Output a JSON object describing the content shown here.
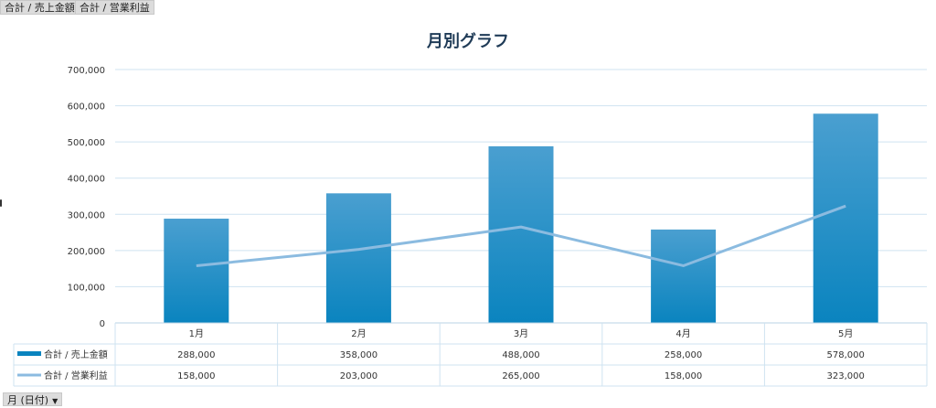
{
  "field_buttons": [
    "合計 / 売上金額",
    "合計 / 営業利益"
  ],
  "axis_field_button": "月 (日付)",
  "colors": {
    "bar_top": "#4a9fd0",
    "bar_bottom": "#0a84bf",
    "line": "#8bbbe0",
    "grid": "#cfe3f1",
    "title": "#1f3b57"
  },
  "chart_data": {
    "type": "bar",
    "title": "月別グラフ",
    "categories": [
      "1月",
      "2月",
      "3月",
      "4月",
      "5月"
    ],
    "ylim": [
      0,
      700000
    ],
    "yticks": [
      "0",
      "100,000",
      "200,000",
      "300,000",
      "400,000",
      "500,000",
      "600,000",
      "700,000"
    ],
    "series": [
      {
        "name": "合計 / 売上金額",
        "type": "bar",
        "values": [
          288000,
          358000,
          488000,
          258000,
          578000
        ],
        "labels": [
          "288,000",
          "358,000",
          "488,000",
          "258,000",
          "578,000"
        ]
      },
      {
        "name": "合計 / 営業利益",
        "type": "line",
        "values": [
          158000,
          203000,
          265000,
          158000,
          323000
        ],
        "labels": [
          "158,000",
          "203,000",
          "265,000",
          "158,000",
          "323,000"
        ]
      }
    ],
    "grid": true,
    "data_table": true
  }
}
